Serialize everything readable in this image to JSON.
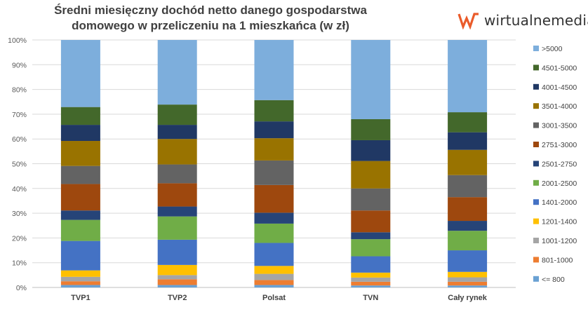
{
  "chart_data": {
    "type": "bar",
    "stacked": true,
    "percent_stacked": true,
    "title": "Średni miesięczny dochód netto danego gospodarstwa domowego w przeliczeniu na 1 mieszkańca (w zł)",
    "title_lines": [
      "Średni miesięczny dochód netto danego gospodarstwa",
      "domowego w przeliczeniu na 1 mieszkańca (w zł)"
    ],
    "categories": [
      "TVP1",
      "TVP2",
      "Polsat",
      "TVN",
      "Cały rynek"
    ],
    "ylim": [
      0,
      100
    ],
    "yticks": [
      "0%",
      "10%",
      "20%",
      "30%",
      "40%",
      "50%",
      "60%",
      "70%",
      "80%",
      "90%",
      "100%"
    ],
    "legend_position": "right",
    "series": [
      {
        "name": "<= 800",
        "color": "#6aa1d3",
        "values": [
          1.0,
          1.0,
          1.0,
          0.8,
          0.8
        ]
      },
      {
        "name": "801-1000",
        "color": "#ed7d31",
        "values": [
          1.5,
          2.3,
          2.0,
          1.5,
          1.5
        ]
      },
      {
        "name": "1001-1200",
        "color": "#a5a5a5",
        "values": [
          1.8,
          1.7,
          2.5,
          1.7,
          1.8
        ]
      },
      {
        "name": "1201-1400",
        "color": "#ffc000",
        "values": [
          2.6,
          4.1,
          3.2,
          2.0,
          2.2
        ]
      },
      {
        "name": "1401-2000",
        "color": "#4472c4",
        "values": [
          11.9,
          10.2,
          9.3,
          6.6,
          8.7
        ]
      },
      {
        "name": "2001-2500",
        "color": "#70ad47",
        "values": [
          8.5,
          9.4,
          7.8,
          6.9,
          7.9
        ]
      },
      {
        "name": "2501-2750",
        "color": "#264478",
        "values": [
          3.8,
          4.0,
          4.4,
          2.8,
          4.0
        ]
      },
      {
        "name": "2751-3000",
        "color": "#9e480e",
        "values": [
          10.7,
          9.4,
          11.2,
          8.8,
          9.6
        ]
      },
      {
        "name": "3001-3500",
        "color": "#636363",
        "values": [
          7.3,
          7.6,
          9.9,
          8.9,
          8.9
        ]
      },
      {
        "name": "3501-4000",
        "color": "#997300",
        "values": [
          10.1,
          10.3,
          9.0,
          11.1,
          10.2
        ]
      },
      {
        "name": "4001-4500",
        "color": "#203864",
        "values": [
          6.5,
          5.7,
          6.8,
          8.4,
          7.1
        ]
      },
      {
        "name": "4501-5000",
        "color": "#43682b",
        "values": [
          7.2,
          8.2,
          8.6,
          8.5,
          8.1
        ]
      },
      {
        "name": ">5000",
        "color": "#7daedc",
        "values": [
          27.1,
          26.1,
          24.3,
          32.0,
          29.2
        ]
      }
    ]
  },
  "logo": {
    "text": "wirtualnemedia",
    "icon": "wm-logo-icon",
    "accent": "#ea5b2a"
  },
  "colors": {
    "gridline": "#d9d9d9",
    "axis": "#bfbfbf"
  }
}
